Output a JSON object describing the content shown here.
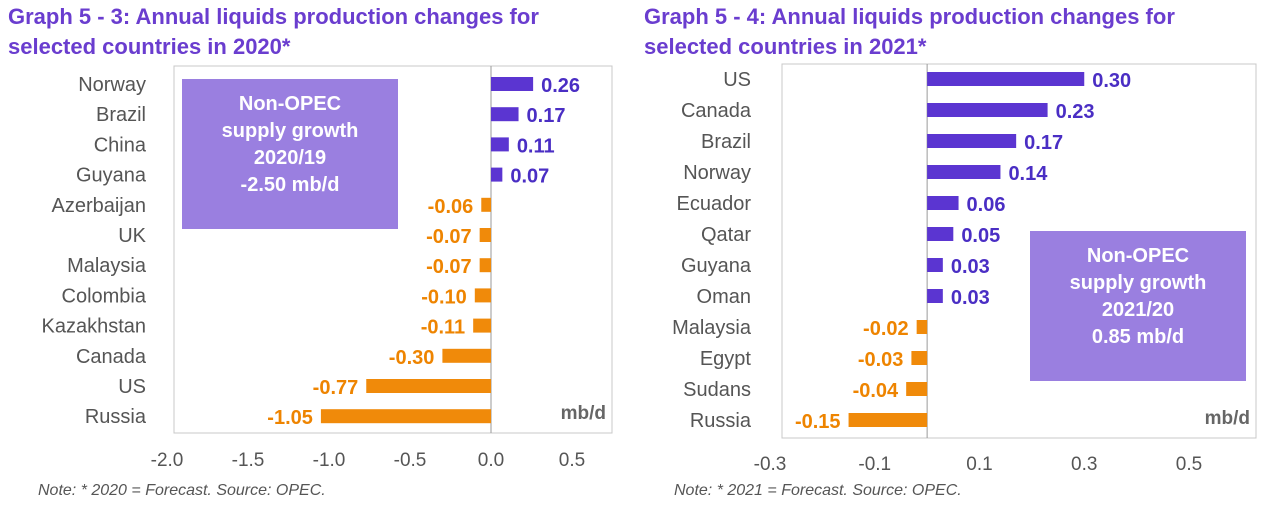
{
  "colors": {
    "title": "#6a3dcf",
    "positive": "#5b35d1",
    "negative": "#f08a0a",
    "callout_bg": "#9a7fe0",
    "positive_label": "#4a2ec4",
    "negative_label": "#ee8400"
  },
  "chart_data": [
    {
      "type": "bar",
      "orientation": "horizontal",
      "title_line1": "Graph 5 - 3: Annual liquids production changes for",
      "title_line2": "selected countries in 2020*",
      "categories": [
        "Norway",
        "Brazil",
        "China",
        "Guyana",
        "Azerbaijan",
        "UK",
        "Malaysia",
        "Colombia",
        "Kazakhstan",
        "Canada",
        "US",
        "Russia"
      ],
      "values": [
        0.26,
        0.17,
        0.11,
        0.07,
        -0.06,
        -0.07,
        -0.07,
        -0.1,
        -0.11,
        -0.3,
        -0.77,
        -1.05
      ],
      "value_labels": [
        "0.26",
        "0.17",
        "0.11",
        "0.07",
        "-0.06",
        "-0.07",
        "-0.07",
        "-0.10",
        "-0.11",
        "-0.30",
        "-0.77",
        "-1.05"
      ],
      "xlim": [
        -2.0,
        0.5
      ],
      "xticks": [
        "-2.0",
        "-1.5",
        "-1.0",
        "-0.5",
        "0.0",
        "0.5"
      ],
      "xtick_values": [
        -2.0,
        -1.5,
        -1.0,
        -0.5,
        0.0,
        0.5
      ],
      "unit_label": "mb/d",
      "callout": [
        "Non-OPEC",
        "supply growth",
        "2020/19",
        "-2.50 mb/d"
      ],
      "note": "Note: * 2020 = Forecast. Source: OPEC."
    },
    {
      "type": "bar",
      "orientation": "horizontal",
      "title_line1": "Graph 5 - 4: Annual liquids production changes for",
      "title_line2": "selected countries in 2021*",
      "categories": [
        "US",
        "Canada",
        "Brazil",
        "Norway",
        "Ecuador",
        "Qatar",
        "Guyana",
        "Oman",
        "Malaysia",
        "Egypt",
        "Sudans",
        "Russia"
      ],
      "values": [
        0.3,
        0.23,
        0.17,
        0.14,
        0.06,
        0.05,
        0.03,
        0.03,
        -0.02,
        -0.03,
        -0.04,
        -0.15
      ],
      "value_labels": [
        "0.30",
        "0.23",
        "0.17",
        "0.14",
        "0.06",
        "0.05",
        "0.03",
        "0.03",
        "-0.02",
        "-0.03",
        "-0.04",
        "-0.15"
      ],
      "xlim": [
        -0.3,
        0.5
      ],
      "xticks": [
        "-0.3",
        "-0.1",
        "0.1",
        "0.3",
        "0.5"
      ],
      "xtick_values": [
        -0.3,
        -0.1,
        0.1,
        0.3,
        0.5
      ],
      "unit_label": "mb/d",
      "callout": [
        "Non-OPEC",
        "supply growth",
        "2021/20",
        "0.85 mb/d"
      ],
      "note": "Note: * 2021 = Forecast. Source: OPEC."
    }
  ]
}
